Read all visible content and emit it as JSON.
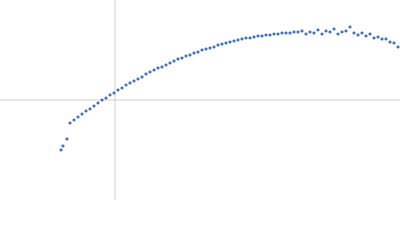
{
  "chart_data": {
    "type": "scatter",
    "x": [
      -54,
      -52,
      -48,
      -45,
      -41,
      -37,
      -33,
      -29,
      -25,
      -21,
      -17,
      -13,
      -9,
      -5,
      -1,
      3,
      7,
      11,
      15,
      19,
      23,
      27,
      31,
      35,
      39,
      43,
      47,
      51,
      55,
      59,
      63,
      67,
      71,
      75,
      79,
      83,
      87,
      91,
      95,
      99,
      103,
      107,
      111,
      115,
      119,
      123,
      127,
      131,
      135,
      139,
      143,
      147,
      151,
      155,
      159,
      163,
      167,
      171,
      175,
      179,
      183,
      187,
      191,
      195,
      199,
      203,
      207,
      211,
      215,
      219,
      223,
      227,
      231,
      235,
      239,
      243,
      247,
      251,
      255,
      259,
      263,
      267,
      271,
      275,
      279,
      283
    ],
    "series": [
      {
        "color": "#3d6fc0",
        "values": [
          -50,
          -46,
          -39,
          -23,
          -20,
          -17,
          -14,
          -11,
          -9,
          -6,
          -3,
          0,
          2,
          5,
          7,
          10,
          12,
          15,
          17,
          19,
          21,
          23,
          26,
          28,
          30,
          32,
          33,
          35,
          37,
          39,
          41,
          42,
          44,
          45,
          47,
          48,
          50,
          51,
          52,
          53,
          55,
          56,
          57,
          58,
          59,
          60,
          61,
          62,
          62,
          63,
          64,
          64,
          65,
          65,
          66,
          66,
          67,
          67,
          67,
          68,
          68,
          69,
          66,
          68,
          67,
          70,
          66,
          69,
          68,
          71,
          66,
          68,
          69,
          73,
          67,
          65,
          67,
          64,
          66,
          62,
          63,
          61,
          61,
          58,
          57,
          53
        ]
      }
    ],
    "xlim": [
      -115,
      285
    ],
    "ylim": [
      -100,
      100
    ],
    "axis_lines": true
  }
}
